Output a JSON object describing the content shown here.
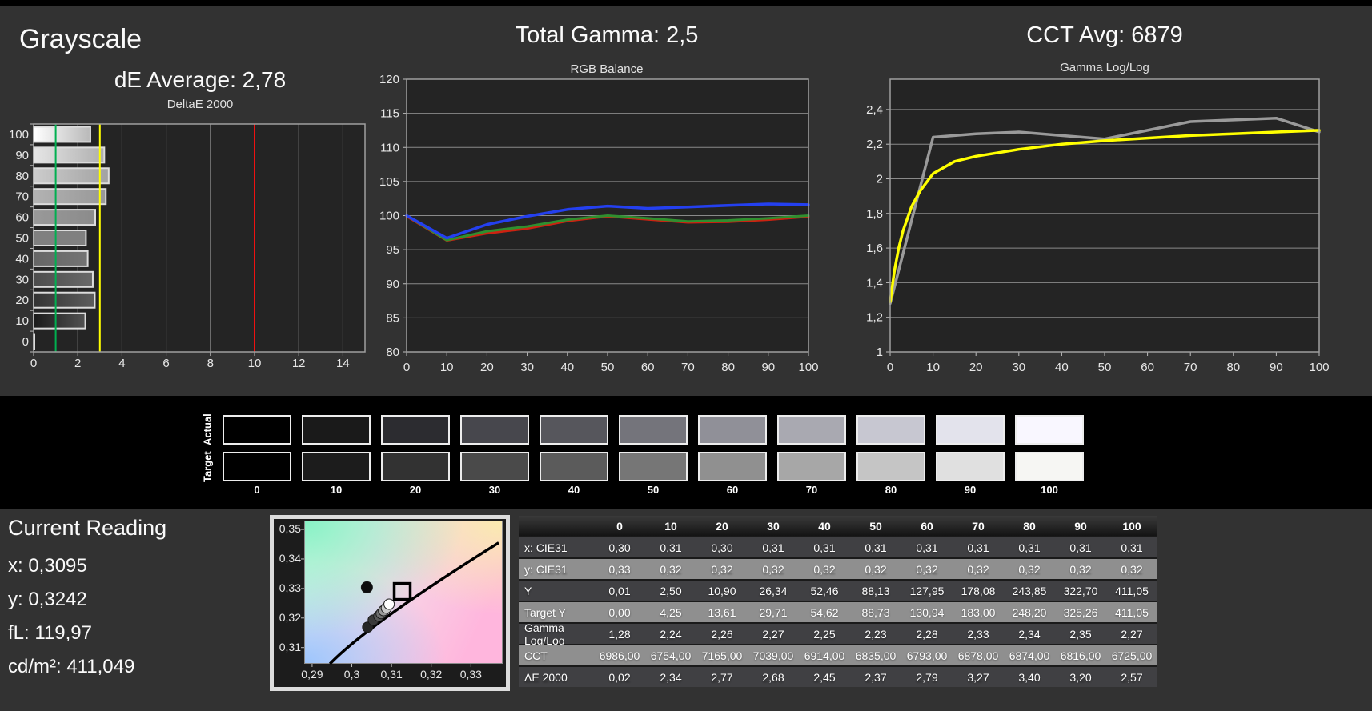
{
  "style": {
    "page_bg": "#323232",
    "band_bg": "#000000",
    "plot_bg": "#242424",
    "grid": "#8a8a8a",
    "axis": "#9f9f9f",
    "tick_color": "#bdbdbd"
  },
  "grayscale": {
    "title": "Grayscale",
    "de_average": "dE Average: 2,78"
  },
  "rgb_balance": {
    "title": "Total Gamma: 2,5"
  },
  "cct": {
    "title": "CCT Avg: 6879"
  },
  "chart_data": [
    {
      "type": "bar",
      "title": "DeltaE 2000",
      "orientation": "horizontal",
      "categories": [
        100,
        90,
        80,
        70,
        60,
        50,
        40,
        30,
        20,
        10,
        0
      ],
      "values": [
        2.57,
        3.2,
        3.4,
        3.27,
        2.79,
        2.37,
        2.45,
        2.68,
        2.77,
        2.34,
        0.02
      ],
      "xlim": [
        0,
        15
      ],
      "xticks": [
        {
          "v": 0,
          "label": "0"
        },
        {
          "v": 2,
          "label": "2"
        },
        {
          "v": 4,
          "label": "4"
        },
        {
          "v": 6,
          "label": "6"
        },
        {
          "v": 8,
          "label": "8"
        },
        {
          "v": 10,
          "label": "10"
        },
        {
          "v": 12,
          "label": "12"
        },
        {
          "v": 14,
          "label": "14"
        }
      ],
      "ref_lines": [
        {
          "name": "good-limit",
          "value": 1,
          "color": "#00b050"
        },
        {
          "name": "warn-limit",
          "value": 3,
          "color": "#ffff00"
        },
        {
          "name": "bad-limit",
          "value": 10,
          "color": "#ee1111"
        }
      ]
    },
    {
      "type": "line",
      "title": "RGB Balance",
      "xlim": [
        0,
        100
      ],
      "ylim": [
        80,
        120
      ],
      "xticks": [
        {
          "v": 0,
          "label": "0"
        },
        {
          "v": 10,
          "label": "10"
        },
        {
          "v": 20,
          "label": "20"
        },
        {
          "v": 30,
          "label": "30"
        },
        {
          "v": 40,
          "label": "40"
        },
        {
          "v": 50,
          "label": "50"
        },
        {
          "v": 60,
          "label": "60"
        },
        {
          "v": 70,
          "label": "70"
        },
        {
          "v": 80,
          "label": "80"
        },
        {
          "v": 90,
          "label": "90"
        },
        {
          "v": 100,
          "label": "100"
        }
      ],
      "yticks": [
        {
          "v": 80,
          "label": "80"
        },
        {
          "v": 85,
          "label": "85"
        },
        {
          "v": 90,
          "label": "90"
        },
        {
          "v": 95,
          "label": "95"
        },
        {
          "v": 100,
          "label": "100"
        },
        {
          "v": 105,
          "label": "105"
        },
        {
          "v": 110,
          "label": "110"
        },
        {
          "v": 115,
          "label": "115"
        },
        {
          "v": 120,
          "label": "120"
        }
      ],
      "series": [
        {
          "name": "red",
          "color": "#cc2211",
          "width": 3,
          "x": [
            0,
            10,
            20,
            30,
            40,
            50,
            60,
            70,
            80,
            90,
            100
          ],
          "values": [
            99.9,
            96.35,
            97.4,
            98.1,
            99.2,
            99.9,
            99.45,
            99.0,
            99.1,
            99.4,
            99.85
          ]
        },
        {
          "name": "green",
          "color": "#2f8f2f",
          "width": 3,
          "x": [
            0,
            10,
            20,
            30,
            40,
            50,
            60,
            70,
            80,
            90,
            100
          ],
          "values": [
            100,
            96.4,
            97.7,
            98.4,
            99.4,
            100.0,
            99.6,
            99.15,
            99.3,
            99.6,
            100.0
          ]
        },
        {
          "name": "blue",
          "color": "#2440f0",
          "width": 3.5,
          "x": [
            0,
            10,
            20,
            30,
            40,
            50,
            60,
            70,
            80,
            90,
            100
          ],
          "values": [
            100,
            96.7,
            98.7,
            99.9,
            100.9,
            101.4,
            101.05,
            101.25,
            101.5,
            101.7,
            101.6
          ]
        }
      ]
    },
    {
      "type": "line",
      "title": "Gamma Log/Log",
      "xlim": [
        0,
        100
      ],
      "ylim": [
        1,
        2.575
      ],
      "xticks": [
        {
          "v": 0,
          "label": "0"
        },
        {
          "v": 10,
          "label": "10"
        },
        {
          "v": 20,
          "label": "20"
        },
        {
          "v": 30,
          "label": "30"
        },
        {
          "v": 40,
          "label": "40"
        },
        {
          "v": 50,
          "label": "50"
        },
        {
          "v": 60,
          "label": "60"
        },
        {
          "v": 70,
          "label": "70"
        },
        {
          "v": 80,
          "label": "80"
        },
        {
          "v": 90,
          "label": "90"
        },
        {
          "v": 100,
          "label": "100"
        }
      ],
      "yticks": [
        {
          "v": 1,
          "label": "1"
        },
        {
          "v": 1.2,
          "label": "1,2"
        },
        {
          "v": 1.4,
          "label": "1,4"
        },
        {
          "v": 1.6,
          "label": "1,6"
        },
        {
          "v": 1.8,
          "label": "1,8"
        },
        {
          "v": 2,
          "label": "2"
        },
        {
          "v": 2.2,
          "label": "2,2"
        },
        {
          "v": 2.4,
          "label": "2,4"
        }
      ],
      "series": [
        {
          "name": "measured",
          "color": "#9a9a9a",
          "width": 3.5,
          "x": [
            0,
            10,
            20,
            30,
            40,
            50,
            60,
            70,
            80,
            90,
            100
          ],
          "values": [
            1.28,
            2.24,
            2.26,
            2.27,
            2.25,
            2.23,
            2.28,
            2.33,
            2.34,
            2.35,
            2.27
          ]
        },
        {
          "name": "target",
          "color": "#ffff00",
          "width": 3.5,
          "x": [
            0,
            1,
            2,
            3,
            5,
            7,
            10,
            15,
            20,
            30,
            40,
            50,
            60,
            70,
            80,
            90,
            100
          ],
          "values": [
            1.29,
            1.47,
            1.6,
            1.7,
            1.84,
            1.93,
            2.03,
            2.1,
            2.13,
            2.17,
            2.2,
            2.22,
            2.235,
            2.25,
            2.26,
            2.27,
            2.28
          ]
        }
      ]
    },
    {
      "type": "scatter",
      "title": "CIE xy chromaticity",
      "xlim": [
        0.288,
        0.338
      ],
      "ylim": [
        0.3045,
        0.353
      ],
      "xticks": [
        {
          "v": 0.29,
          "label": "0,29"
        },
        {
          "v": 0.3,
          "label": "0,3"
        },
        {
          "v": 0.31,
          "label": "0,31"
        },
        {
          "v": 0.32,
          "label": "0,32"
        },
        {
          "v": 0.33,
          "label": "0,33"
        }
      ],
      "yticks": [
        {
          "v": 0.35,
          "label": "0,35"
        },
        {
          "v": 0.34,
          "label": "0,34"
        },
        {
          "v": 0.33,
          "label": "0,33"
        },
        {
          "v": 0.32,
          "label": "0,32"
        },
        {
          "v": 0.31,
          "label": "0,31"
        }
      ],
      "locus": [
        [
          0.2945,
          0.3045
        ],
        [
          0.31,
          0.3215
        ],
        [
          0.337,
          0.3455
        ]
      ],
      "target": {
        "x": 0.3127,
        "y": 0.329
      },
      "points": [
        {
          "x": 0.3038,
          "y": 0.3304,
          "color": "#0d0d0d",
          "r": 7
        },
        {
          "x": 0.304,
          "y": 0.3169,
          "color": "#262626",
          "r": 6.5
        },
        {
          "x": 0.3054,
          "y": 0.3193,
          "color": "#3a3a3a",
          "r": 6.5
        },
        {
          "x": 0.3068,
          "y": 0.3207,
          "color": "#575757",
          "r": 6.5
        },
        {
          "x": 0.3074,
          "y": 0.3215,
          "color": "#6f6f6f",
          "r": 6.5
        },
        {
          "x": 0.308,
          "y": 0.3225,
          "color": "#999999",
          "r": 6.5
        },
        {
          "x": 0.3087,
          "y": 0.3234,
          "color": "#c9c9c9",
          "r": 6.5
        },
        {
          "x": 0.3094,
          "y": 0.3247,
          "color": "#ffffff",
          "r": 6.5
        }
      ]
    }
  ],
  "swatches": {
    "row_labels": [
      "Actual",
      "Target"
    ],
    "levels": [
      "0",
      "10",
      "20",
      "30",
      "40",
      "50",
      "60",
      "70",
      "80",
      "90",
      "100"
    ],
    "actual_colors": [
      "#000000",
      "#1a1a1a",
      "#2c2c30",
      "#47474d",
      "#56565c",
      "#74747b",
      "#909098",
      "#a9a9b1",
      "#c7c7d1",
      "#e3e3ec",
      "#f9f7ff"
    ],
    "target_colors": [
      "#000000",
      "#1c1c1c",
      "#323232",
      "#4a4a4a",
      "#5b5b5b",
      "#767676",
      "#909090",
      "#a7a7a7",
      "#c5c5c5",
      "#e0e0e0",
      "#f6f6f3"
    ]
  },
  "current_reading": {
    "title": "Current Reading",
    "lines": [
      "x: 0,3095",
      "y: 0,3242",
      "fL: 119,97",
      "cd/m²: 411,049"
    ]
  },
  "table": {
    "columns": [
      "",
      "0",
      "10",
      "20",
      "30",
      "40",
      "50",
      "60",
      "70",
      "80",
      "90",
      "100"
    ],
    "rows": [
      {
        "label": "x: CIE31",
        "shade": "dark",
        "values": [
          "0,30",
          "0,31",
          "0,30",
          "0,31",
          "0,31",
          "0,31",
          "0,31",
          "0,31",
          "0,31",
          "0,31",
          "0,31"
        ]
      },
      {
        "label": "y: CIE31",
        "shade": "light",
        "values": [
          "0,33",
          "0,32",
          "0,32",
          "0,32",
          "0,32",
          "0,32",
          "0,32",
          "0,32",
          "0,32",
          "0,32",
          "0,32"
        ]
      },
      {
        "label": "Y",
        "shade": "dark",
        "values": [
          "0,01",
          "2,50",
          "10,90",
          "26,34",
          "52,46",
          "88,13",
          "127,95",
          "178,08",
          "243,85",
          "322,70",
          "411,05"
        ]
      },
      {
        "label": "Target Y",
        "shade": "light",
        "values": [
          "0,00",
          "4,25",
          "13,61",
          "29,71",
          "54,62",
          "88,73",
          "130,94",
          "183,00",
          "248,20",
          "325,26",
          "411,05"
        ]
      },
      {
        "label": "Gamma Log/Log",
        "shade": "dark",
        "values": [
          "1,28",
          "2,24",
          "2,26",
          "2,27",
          "2,25",
          "2,23",
          "2,28",
          "2,33",
          "2,34",
          "2,35",
          "2,27"
        ]
      },
      {
        "label": "CCT",
        "shade": "light",
        "values": [
          "6986,00",
          "6754,00",
          "7165,00",
          "7039,00",
          "6914,00",
          "6835,00",
          "6793,00",
          "6878,00",
          "6874,00",
          "6816,00",
          "6725,00"
        ]
      },
      {
        "label": "ΔE 2000",
        "shade": "dark",
        "values": [
          "0,02",
          "2,34",
          "2,77",
          "2,68",
          "2,45",
          "2,37",
          "2,79",
          "3,27",
          "3,40",
          "3,20",
          "2,57"
        ]
      }
    ]
  }
}
